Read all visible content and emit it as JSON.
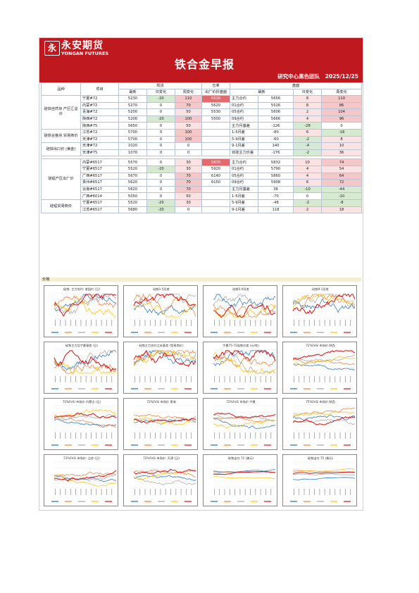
{
  "header": {
    "logo_glyph": "永",
    "logo_cn": "永安期货",
    "logo_en": "YONGAN FUTURES",
    "title": "铁合金早报",
    "team": "研究中心黑色团队",
    "date": "2025/12/25"
  },
  "table": {
    "head": {
      "variety": "品种",
      "item": "项目",
      "spot": "现货",
      "warrant": "仓单",
      "futures": "盘面",
      "latest": "最新",
      "day_change": "日变化",
      "week_change": "周变化",
      "warrant_price": "出厂价折盘面",
      "fut_latest": "最新"
    },
    "groups": [
      {
        "name": "硅铁自然块\n产区汇总价",
        "rows": [
          {
            "item": "宁夏#72",
            "latest": "5230",
            "day": "-20",
            "week": "110",
            "warrant": "5530",
            "fut_name": "主力合约",
            "fut_latest": "5656",
            "fut_day": "8",
            "fut_week": "110"
          },
          {
            "item": "内蒙#72",
            "latest": "5270",
            "day": "0",
            "week": "70",
            "warrant": "5620",
            "fut_name": "01合约",
            "fut_latest": "5526",
            "fut_day": "8",
            "fut_week": "86"
          },
          {
            "item": "青海#72",
            "latest": "5200",
            "day": "0",
            "week": "50",
            "warrant": "5530",
            "fut_name": "05合约",
            "fut_latest": "5606",
            "fut_day": "2",
            "fut_week": "104"
          },
          {
            "item": "陕西#72",
            "latest": "5200",
            "day": "-20",
            "week": "100",
            "warrant": "5500",
            "fut_name": "09合约",
            "fut_latest": "5666",
            "fut_day": "4",
            "fut_week": "96"
          },
          {
            "item": "陕西#75",
            "latest": "5650",
            "day": "0",
            "week": "50",
            "warrant": "",
            "fut_name": "主力月基差",
            "fut_latest": "-126",
            "fut_day": "-28",
            "fut_week": "0"
          }
        ]
      },
      {
        "name": "硅铁合格块\n贸易商价",
        "rows": [
          {
            "item": "江苏#72",
            "latest": "5700",
            "day": "0",
            "week": "100",
            "warrant": "",
            "fut_name": "1-5月差",
            "fut_latest": "-80",
            "fut_day": "6",
            "fut_week": "-18"
          },
          {
            "item": "天津#72",
            "latest": "5700",
            "day": "0",
            "week": "100",
            "warrant": "",
            "fut_name": "5-9月差",
            "fut_latest": "-60",
            "fut_day": "-2",
            "fut_week": "8"
          }
        ]
      },
      {
        "name": "硅铁出口价\n(美金)",
        "rows": [
          {
            "item": "天津#72",
            "latest": "1020",
            "day": "0",
            "week": "0",
            "warrant": "",
            "fut_name": "9-1月差",
            "fut_latest": "140",
            "fut_day": "-4",
            "fut_week": "10"
          },
          {
            "item": "天津#75",
            "latest": "1070",
            "day": "0",
            "week": "0",
            "warrant": "",
            "fut_name": "双硅主力价差",
            "fut_latest": "-176",
            "fut_day": "-2",
            "fut_week": "36"
          }
        ]
      },
      {
        "name": "硅锰产区出厂价",
        "rows": [
          {
            "item": "内蒙#6517",
            "latest": "5570",
            "day": "0",
            "week": "30",
            "warrant": "5870",
            "fut_name": "主力合约",
            "fut_latest": "5832",
            "fut_day": "10",
            "fut_week": "74"
          },
          {
            "item": "宁夏#6517",
            "latest": "5520",
            "day": "-20",
            "week": "30",
            "warrant": "5920",
            "fut_name": "01合约",
            "fut_latest": "5790",
            "fut_day": "4",
            "fut_week": "54"
          },
          {
            "item": "广西#6517",
            "latest": "5670",
            "day": "0",
            "week": "70",
            "warrant": "6140",
            "fut_name": "05合约",
            "fut_latest": "5860",
            "fut_day": "4",
            "fut_week": "64"
          },
          {
            "item": "贵州#6517",
            "latest": "5620",
            "day": "0",
            "week": "70",
            "warrant": "6150",
            "fut_name": "09合约",
            "fut_latest": "5908",
            "fut_day": "6",
            "fut_week": "72"
          },
          {
            "item": "云南#6517",
            "latest": "5620",
            "day": "0",
            "week": "70",
            "warrant": "",
            "fut_name": "主力月基差",
            "fut_latest": "38",
            "fut_day": "-10",
            "fut_week": "-44"
          },
          {
            "item": "广西#6014",
            "latest": "5050",
            "day": "0",
            "week": "50",
            "warrant": "",
            "fut_name": "1-5月差",
            "fut_latest": "-70",
            "fut_day": "0",
            "fut_week": "-10"
          }
        ]
      },
      {
        "name": "硅锰贸易商价",
        "rows": [
          {
            "item": "宁夏#6517",
            "latest": "5520",
            "day": "-20",
            "week": "30",
            "warrant": "",
            "fut_name": "5-9月差",
            "fut_latest": "-48",
            "fut_day": "-2",
            "fut_week": "-8"
          },
          {
            "item": "江苏#6517",
            "latest": "5680",
            "day": "-20",
            "week": "0",
            "warrant": "",
            "fut_name": "9-1月差",
            "fut_latest": "118",
            "fut_day": "2",
            "fut_week": "18"
          }
        ]
      }
    ]
  },
  "section_label": "价格",
  "charts": [
    {
      "title": "硅铁: 主力合约: 收盘价 (日)",
      "kind": "noisy",
      "colors": [
        "#1f6fc0",
        "#ed7d31",
        "#a5a5a5",
        "#ffc000",
        "#e01010"
      ]
    },
    {
      "title": "硅铁1-5月差",
      "kind": "spread",
      "colors": [
        "#1f6fc0",
        "#ed7d31",
        "#a5a5a5",
        "#ffc000",
        "#e01010"
      ]
    },
    {
      "title": "硅铁5-9月差",
      "kind": "spread",
      "colors": [
        "#1f6fc0",
        "#ed7d31",
        "#a5a5a5",
        "#ffc000",
        "#e01010"
      ]
    },
    {
      "title": "硅铁9-1月差",
      "kind": "spread",
      "colors": [
        "#1f6fc0",
        "#ed7d31",
        "#a5a5a5",
        "#ffc000",
        "#e01010"
      ]
    },
    {
      "title": "硅铁主力月宁夏基差 (日)",
      "kind": "spread",
      "colors": [
        "#1f6fc0",
        "#ed7d31",
        "#a5a5a5",
        "#ffc000",
        "#e01010"
      ]
    },
    {
      "title": "硅铁主力合约江苏基差 (贸易商价)",
      "kind": "spread",
      "colors": [
        "#1f6fc0",
        "#ed7d31",
        "#a5a5a5",
        "#ffc000",
        "#e01010"
      ]
    },
    {
      "title": "宁夏75-72硅铁价差 (元/吨)",
      "kind": "spread",
      "colors": [
        "#1f6fc0",
        "#ed7d31",
        "#a5a5a5",
        "#ffc000",
        "#e01010"
      ]
    },
    {
      "title": "72%FeSi 市场价 陕西",
      "kind": "trend",
      "colors": [
        "#1f6fc0",
        "#ed7d31",
        "#a5a5a5",
        "#ffc000",
        "#e01010"
      ]
    },
    {
      "title": "72%FeSi 市场价 内蒙古 (日)",
      "kind": "trend",
      "colors": [
        "#1f6fc0",
        "#ed7d31",
        "#a5a5a5",
        "#ffc000",
        "#e01010"
      ]
    },
    {
      "title": "72%FeSi 市场价 青海",
      "kind": "trend",
      "colors": [
        "#1f6fc0",
        "#ed7d31",
        "#a5a5a5",
        "#ffc000",
        "#e01010"
      ]
    },
    {
      "title": "72%FeSi 市场价 宁夏",
      "kind": "trend",
      "colors": [
        "#1f6fc0",
        "#ed7d31",
        "#a5a5a5",
        "#ffc000",
        "#e01010"
      ]
    },
    {
      "title": "75%FeSi 市场价 陕西",
      "kind": "trend",
      "colors": [
        "#1f6fc0",
        "#ed7d31",
        "#a5a5a5",
        "#ffc000",
        "#e01010"
      ]
    },
    {
      "title": "72%FeSi 市场价: 江苏 (日)",
      "kind": "trend",
      "colors": [
        "#1f6fc0",
        "#ed7d31",
        "#a5a5a5",
        "#ffc000",
        "#e01010"
      ]
    },
    {
      "title": "72%FeSi 市场价: 天津 (日)",
      "kind": "trend",
      "colors": [
        "#1f6fc0",
        "#ed7d31",
        "#a5a5a5",
        "#ffc000",
        "#e01010"
      ]
    },
    {
      "title": "硅铁出口 72 (美元)",
      "kind": "monthly",
      "colors": [
        "#1f6fc0",
        "#ed7d31",
        "#a5a5a5",
        "#ffc000",
        "#e01010"
      ]
    },
    {
      "title": "硅铁出口 75 (美元)",
      "kind": "monthly",
      "colors": [
        "#1f6fc0",
        "#ed7d31",
        "#a5a5a5",
        "#ffc000",
        "#e01010"
      ]
    }
  ]
}
